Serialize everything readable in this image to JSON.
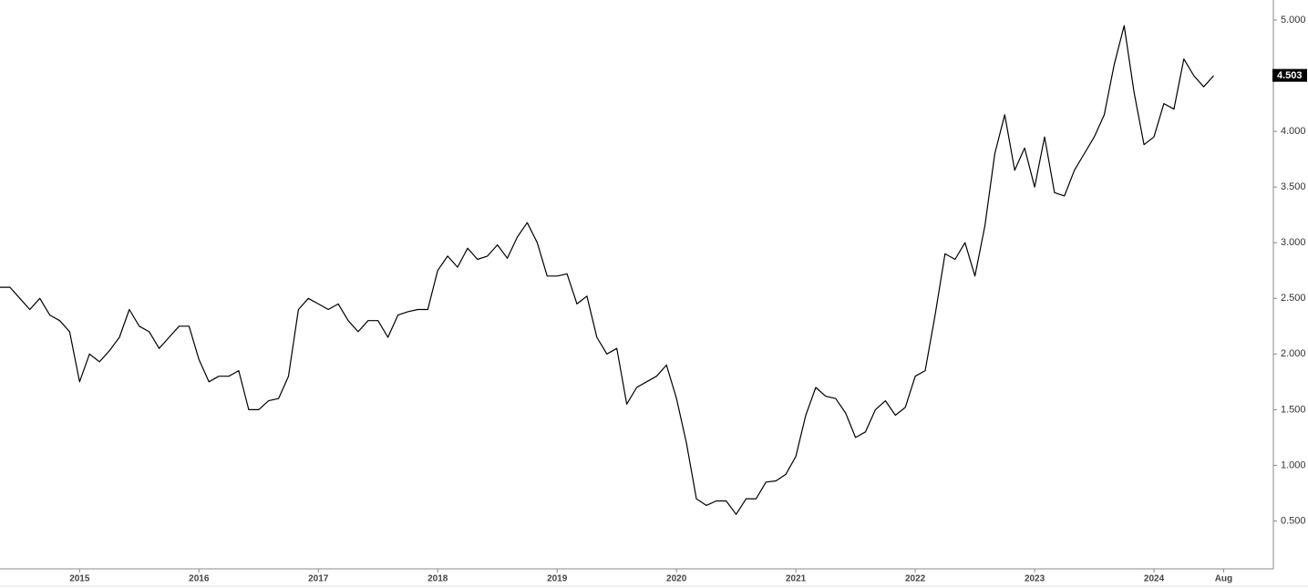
{
  "chart_data": {
    "type": "line",
    "x": [
      "2014-05",
      "2014-06",
      "2014-07",
      "2014-08",
      "2014-09",
      "2014-10",
      "2014-11",
      "2014-12",
      "2015-01",
      "2015-02",
      "2015-03",
      "2015-04",
      "2015-05",
      "2015-06",
      "2015-07",
      "2015-08",
      "2015-09",
      "2015-10",
      "2015-11",
      "2015-12",
      "2016-01",
      "2016-02",
      "2016-03",
      "2016-04",
      "2016-05",
      "2016-06",
      "2016-07",
      "2016-08",
      "2016-09",
      "2016-10",
      "2016-11",
      "2016-12",
      "2017-01",
      "2017-02",
      "2017-03",
      "2017-04",
      "2017-05",
      "2017-06",
      "2017-07",
      "2017-08",
      "2017-09",
      "2017-10",
      "2017-11",
      "2017-12",
      "2018-01",
      "2018-02",
      "2018-03",
      "2018-04",
      "2018-05",
      "2018-06",
      "2018-07",
      "2018-08",
      "2018-09",
      "2018-10",
      "2018-11",
      "2018-12",
      "2019-01",
      "2019-02",
      "2019-03",
      "2019-04",
      "2019-05",
      "2019-06",
      "2019-07",
      "2019-08",
      "2019-09",
      "2019-10",
      "2019-11",
      "2019-12",
      "2020-01",
      "2020-02",
      "2020-03",
      "2020-04",
      "2020-05",
      "2020-06",
      "2020-07",
      "2020-08",
      "2020-09",
      "2020-10",
      "2020-11",
      "2020-12",
      "2021-01",
      "2021-02",
      "2021-03",
      "2021-04",
      "2021-05",
      "2021-06",
      "2021-07",
      "2021-08",
      "2021-09",
      "2021-10",
      "2021-11",
      "2021-12",
      "2022-01",
      "2022-02",
      "2022-03",
      "2022-04",
      "2022-05",
      "2022-06",
      "2022-07",
      "2022-08",
      "2022-09",
      "2022-10",
      "2022-11",
      "2022-12",
      "2023-01",
      "2023-02",
      "2023-03",
      "2023-04",
      "2023-05",
      "2023-06",
      "2023-07",
      "2023-08",
      "2023-09",
      "2023-10",
      "2023-11",
      "2023-12",
      "2024-01",
      "2024-02",
      "2024-03",
      "2024-04",
      "2024-05",
      "2024-06",
      "2024-07"
    ],
    "series": [
      {
        "color": "#000000",
        "values": [
          2.6,
          2.6,
          2.5,
          2.4,
          2.5,
          2.35,
          2.3,
          2.2,
          1.75,
          2.0,
          1.93,
          2.03,
          2.15,
          2.4,
          2.25,
          2.2,
          2.05,
          2.15,
          2.25,
          2.25,
          1.95,
          1.75,
          1.8,
          1.8,
          1.85,
          1.5,
          1.5,
          1.58,
          1.6,
          1.8,
          2.4,
          2.5,
          2.45,
          2.4,
          2.45,
          2.3,
          2.2,
          2.3,
          2.3,
          2.15,
          2.35,
          2.38,
          2.4,
          2.4,
          2.75,
          2.88,
          2.78,
          2.95,
          2.85,
          2.88,
          2.98,
          2.86,
          3.05,
          3.18,
          3.0,
          2.7,
          2.7,
          2.72,
          2.45,
          2.52,
          2.15,
          2.0,
          2.05,
          1.55,
          1.7,
          1.75,
          1.8,
          1.9,
          1.6,
          1.2,
          0.7,
          0.64,
          0.68,
          0.68,
          0.56,
          0.7,
          0.7,
          0.85,
          0.86,
          0.92,
          1.08,
          1.45,
          1.7,
          1.62,
          1.6,
          1.47,
          1.25,
          1.3,
          1.5,
          1.58,
          1.45,
          1.52,
          1.8,
          1.85,
          2.35,
          2.9,
          2.85,
          3.0,
          2.7,
          3.15,
          3.8,
          4.15,
          3.65,
          3.85,
          3.5,
          3.95,
          3.45,
          3.42,
          3.65,
          3.8,
          3.95,
          4.15,
          4.6,
          4.95,
          4.35,
          3.88,
          3.95,
          4.25,
          4.2,
          4.65,
          4.5,
          4.4,
          4.5
        ]
      }
    ],
    "ylim": [
      0.07,
      5.18
    ],
    "yticks": [
      {
        "value": 0.5,
        "label": "0.500"
      },
      {
        "value": 1,
        "label": "1.000"
      },
      {
        "value": 1.5,
        "label": "1.500"
      },
      {
        "value": 2,
        "label": "2.000"
      },
      {
        "value": 2.5,
        "label": "2.500"
      },
      {
        "value": 3,
        "label": "3.000"
      },
      {
        "value": 3.5,
        "label": "3.500"
      },
      {
        "value": 4,
        "label": "4.000"
      },
      {
        "value": 4.5,
        "label": "4.500"
      },
      {
        "value": 5,
        "label": "5.000"
      }
    ],
    "xlim": [
      "2014-05",
      "2025-01"
    ],
    "xticks": [
      {
        "value": "2015-01",
        "label": "2015"
      },
      {
        "value": "2016-01",
        "label": "2016"
      },
      {
        "value": "2017-01",
        "label": "2017"
      },
      {
        "value": "2018-01",
        "label": "2018"
      },
      {
        "value": "2019-01",
        "label": "2019"
      },
      {
        "value": "2020-01",
        "label": "2020"
      },
      {
        "value": "2021-01",
        "label": "2021"
      },
      {
        "value": "2022-01",
        "label": "2022"
      },
      {
        "value": "2023-01",
        "label": "2023"
      },
      {
        "value": "2024-01",
        "label": "2024"
      },
      {
        "value": "2024-08",
        "label": "Aug"
      }
    ],
    "last_value": 4.503
  }
}
